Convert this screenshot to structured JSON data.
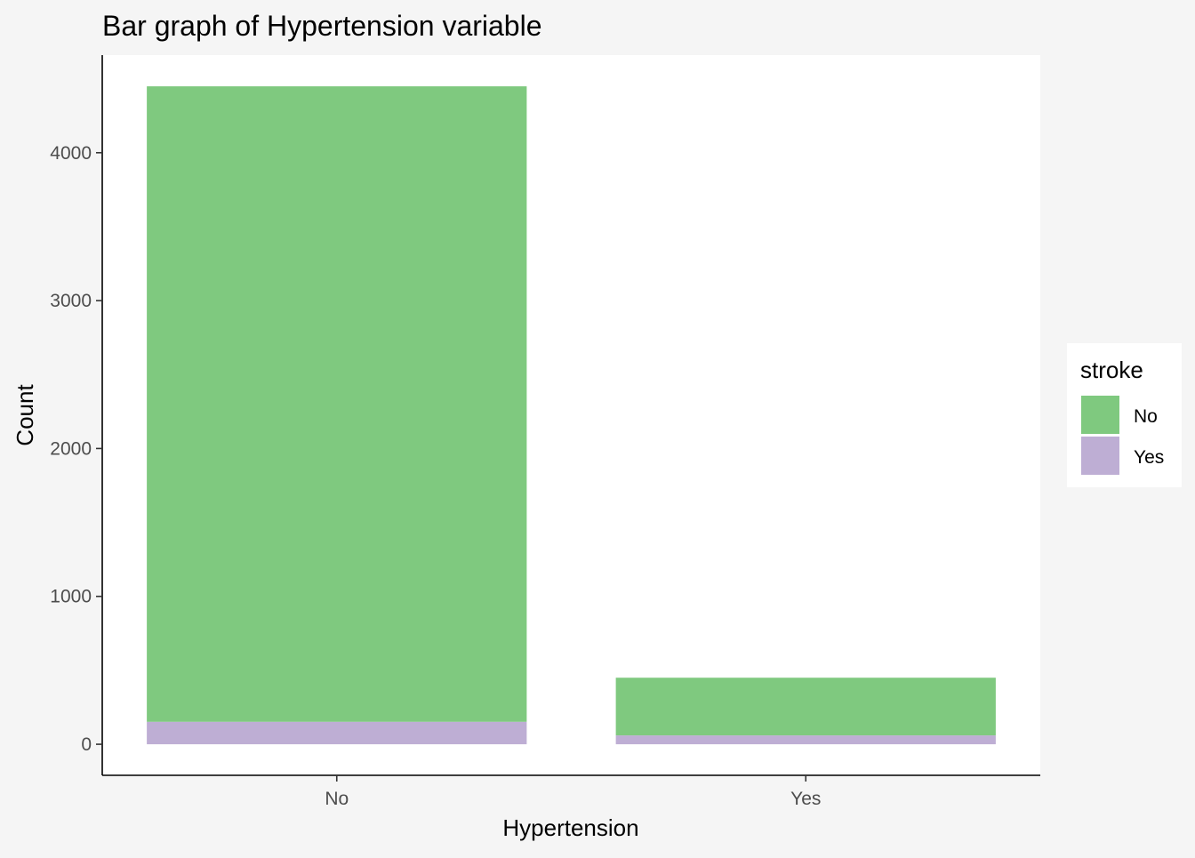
{
  "chart_data": {
    "type": "bar",
    "stacked": true,
    "title": "Bar graph of Hypertension variable",
    "xlabel": "Hypertension",
    "ylabel": "Count",
    "categories": [
      "No",
      "Yes"
    ],
    "series": [
      {
        "name": "No",
        "values": [
          4297,
          390
        ],
        "color": "#7FC97F"
      },
      {
        "name": "Yes",
        "values": [
          152,
          60
        ],
        "color": "#BEAED4"
      }
    ],
    "ylim": [
      -210,
      4660
    ],
    "yticks": [
      0,
      1000,
      2000,
      3000,
      4000
    ],
    "ytick_labels": [
      "0",
      "1000",
      "2000",
      "3000",
      "4000"
    ],
    "legend": {
      "title": "stroke",
      "position": "right",
      "entries": [
        "No",
        "Yes"
      ]
    },
    "grid": false,
    "panel_background": "#FFFFFF",
    "plot_background": "#F5F5F5"
  }
}
